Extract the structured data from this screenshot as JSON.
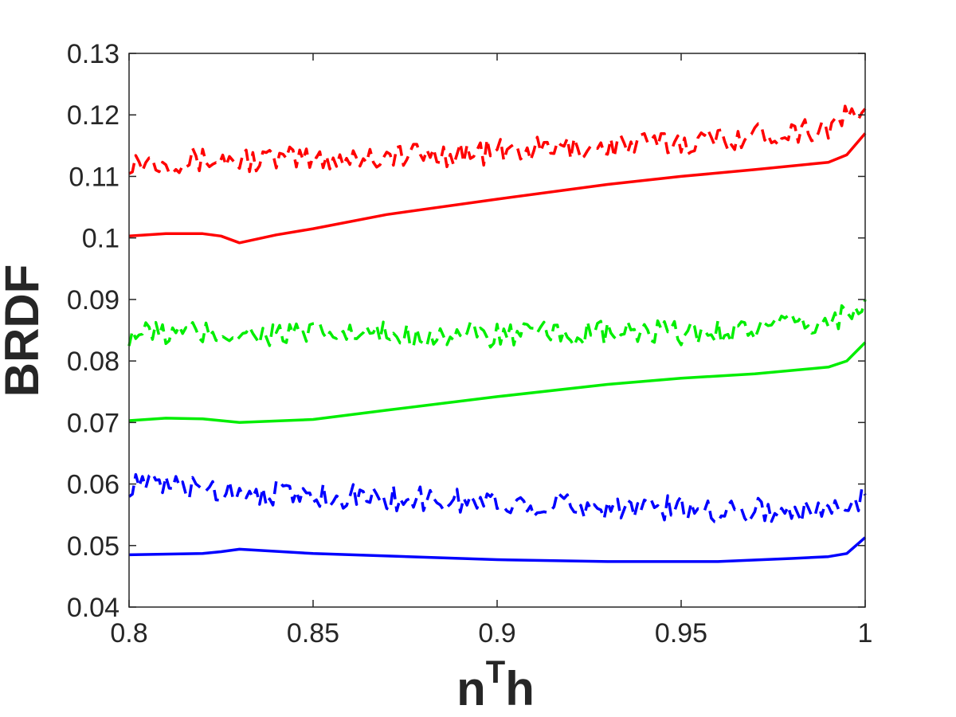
{
  "chart_data": {
    "type": "line",
    "title": "",
    "xlabel": "n",
    "xlabel_superscript": "T",
    "xlabel_suffix": "h",
    "ylabel": "BRDF",
    "xlim": [
      0.8,
      1.0
    ],
    "ylim": [
      0.04,
      0.13
    ],
    "xticks": [
      0.8,
      0.85,
      0.9,
      0.95,
      1.0
    ],
    "xtick_labels": [
      "0.8",
      "0.85",
      "0.9",
      "0.95",
      "1"
    ],
    "yticks": [
      0.04,
      0.05,
      0.06,
      0.07,
      0.08,
      0.09,
      0.1,
      0.11,
      0.12,
      0.13
    ],
    "ytick_labels": [
      "0.04",
      "0.05",
      "0.06",
      "0.07",
      "0.08",
      "0.09",
      "0.1",
      "0.11",
      "0.12",
      "0.13"
    ],
    "grid": false,
    "legend": "none",
    "series": [
      {
        "color": "#ff0000",
        "style": "solid",
        "x": [
          0.8,
          0.81,
          0.82,
          0.825,
          0.83,
          0.84,
          0.85,
          0.87,
          0.9,
          0.93,
          0.95,
          0.97,
          0.99,
          0.995,
          1.0
        ],
        "y": [
          0.1003,
          0.1007,
          0.1007,
          0.1003,
          0.0992,
          0.1005,
          0.1015,
          0.1038,
          0.1063,
          0.1087,
          0.11,
          0.1111,
          0.1123,
          0.1135,
          0.117
        ]
      },
      {
        "color": "#ff0000",
        "style": "dashed",
        "x": [
          0.8,
          0.85,
          0.9,
          0.95,
          0.99,
          1.0
        ],
        "y": [
          0.1125,
          0.1128,
          0.114,
          0.1155,
          0.118,
          0.121
        ]
      },
      {
        "color": "#00ee00",
        "style": "solid",
        "x": [
          0.8,
          0.81,
          0.82,
          0.83,
          0.85,
          0.87,
          0.9,
          0.93,
          0.95,
          0.97,
          0.99,
          0.995,
          1.0
        ],
        "y": [
          0.0703,
          0.0707,
          0.0706,
          0.07,
          0.0705,
          0.072,
          0.0742,
          0.0762,
          0.0772,
          0.0779,
          0.079,
          0.08,
          0.083
        ]
      },
      {
        "color": "#00ee00",
        "style": "dashed",
        "x": [
          0.8,
          0.85,
          0.9,
          0.95,
          0.99,
          1.0
        ],
        "y": [
          0.0845,
          0.0843,
          0.0842,
          0.0845,
          0.086,
          0.09
        ]
      },
      {
        "color": "#0000ff",
        "style": "solid",
        "x": [
          0.8,
          0.82,
          0.825,
          0.83,
          0.85,
          0.9,
          0.93,
          0.96,
          0.98,
          0.99,
          0.995,
          1.0
        ],
        "y": [
          0.0485,
          0.0487,
          0.049,
          0.0494,
          0.0487,
          0.0477,
          0.0474,
          0.0474,
          0.0479,
          0.0482,
          0.0487,
          0.0513
        ]
      },
      {
        "color": "#0000ff",
        "style": "dashed",
        "x": [
          0.8,
          0.85,
          0.9,
          0.95,
          0.99,
          1.0
        ],
        "y": [
          0.06,
          0.0582,
          0.057,
          0.056,
          0.0555,
          0.0582
        ]
      }
    ]
  }
}
